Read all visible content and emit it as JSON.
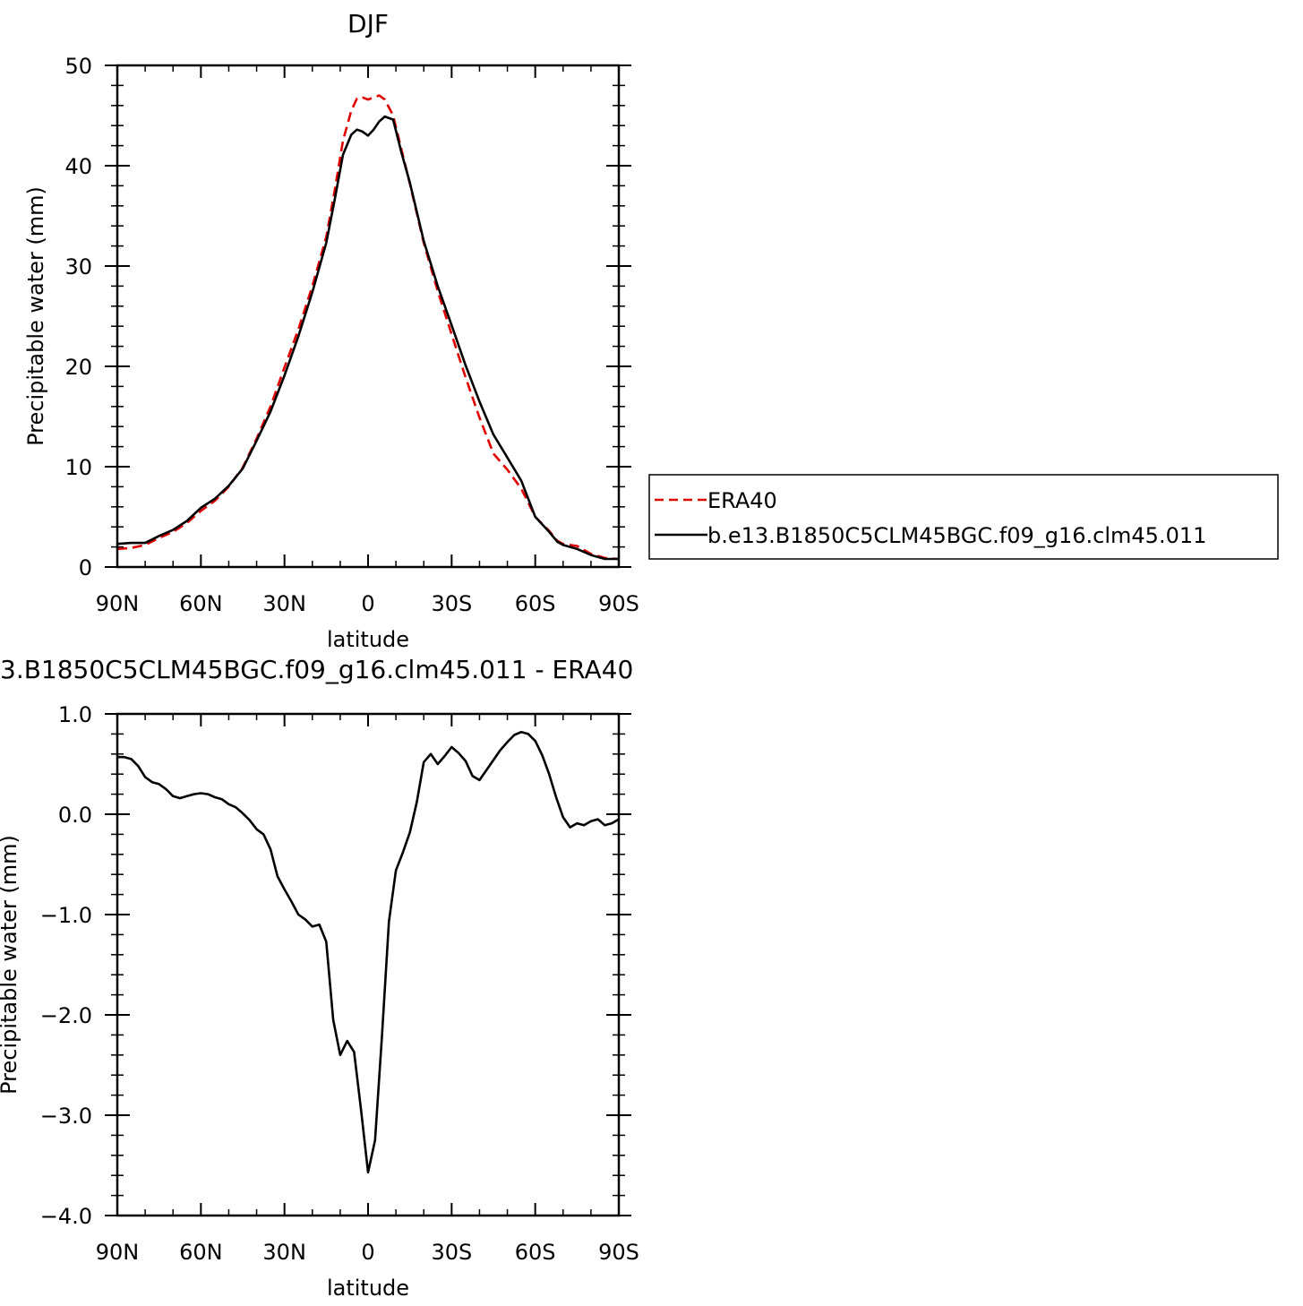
{
  "chart_data": [
    {
      "type": "line",
      "title": "DJF",
      "xlabel": "latitude",
      "ylabel": "Precipitable water (mm)",
      "xlim": [
        90,
        -90
      ],
      "ylim": [
        0,
        50
      ],
      "x_ticks": [
        90,
        60,
        30,
        0,
        -30,
        -60,
        -90
      ],
      "x_tick_labels": [
        "90N",
        "60N",
        "30N",
        "0",
        "30S",
        "60S",
        "90S"
      ],
      "y_ticks": [
        0,
        10,
        20,
        30,
        40,
        50
      ],
      "y_tick_labels": [
        "0",
        "10",
        "20",
        "30",
        "40",
        "50"
      ],
      "legend": "right",
      "series": [
        {
          "name": "ERA40",
          "color": "#e00000",
          "dash": "dashed",
          "x": [
            90,
            85,
            80,
            75,
            70,
            65,
            60,
            55,
            50,
            45,
            40,
            35,
            30,
            25,
            20,
            15,
            12,
            9,
            6,
            4,
            2,
            0,
            -2,
            -4,
            -6,
            -9,
            -12,
            -15,
            -20,
            -25,
            -30,
            -35,
            -40,
            -45,
            -50,
            -55,
            -60,
            -65,
            -68,
            -70,
            -75,
            -80,
            -85,
            -90
          ],
          "values": [
            1.8,
            1.9,
            2.2,
            2.9,
            3.5,
            4.4,
            5.6,
            6.6,
            8.0,
            9.9,
            12.8,
            16.0,
            19.9,
            23.7,
            28.0,
            32.9,
            37.5,
            42.5,
            45.5,
            46.7,
            46.8,
            46.6,
            46.8,
            47.0,
            46.6,
            45.0,
            41.6,
            38.2,
            32.3,
            27.5,
            23.2,
            18.9,
            14.9,
            11.3,
            9.7,
            7.8,
            5.0,
            3.6,
            2.6,
            2.3,
            2.1,
            1.3,
            0.9,
            0.8
          ]
        },
        {
          "name": "b.e13.B1850C5CLM45BGC.f09_g16.clm45.011",
          "color": "#000000",
          "dash": "solid",
          "x": [
            90,
            85,
            80,
            75,
            70,
            65,
            60,
            55,
            50,
            45,
            40,
            35,
            30,
            25,
            20,
            15,
            12,
            9,
            6,
            4,
            2,
            0,
            -2,
            -4,
            -6,
            -9,
            -12,
            -15,
            -20,
            -25,
            -30,
            -35,
            -40,
            -45,
            -50,
            -55,
            -60,
            -65,
            -68,
            -70,
            -75,
            -80,
            -85,
            -90
          ],
          "values": [
            2.3,
            2.4,
            2.4,
            3.1,
            3.7,
            4.6,
            5.9,
            6.8,
            8.1,
            9.8,
            12.6,
            15.5,
            19.1,
            23.0,
            27.4,
            32.3,
            36.6,
            41.1,
            43.1,
            43.6,
            43.4,
            43.0,
            43.6,
            44.4,
            44.9,
            44.6,
            41.3,
            38.3,
            32.5,
            28.0,
            24.1,
            20.1,
            16.5,
            13.2,
            10.9,
            8.6,
            5.0,
            3.5,
            2.5,
            2.2,
            1.8,
            1.2,
            0.8,
            0.8
          ]
        }
      ]
    },
    {
      "type": "line",
      "title": "3.B1850C5CLM45BGC.f09_g16.clm45.011  -  ERA40",
      "xlabel": "latitude",
      "ylabel": "Precipitable water (mm)",
      "xlim": [
        90,
        -90
      ],
      "ylim": [
        -4.0,
        1.0
      ],
      "x_ticks": [
        90,
        60,
        30,
        0,
        -30,
        -60,
        -90
      ],
      "x_tick_labels": [
        "90N",
        "60N",
        "30N",
        "0",
        "30S",
        "60S",
        "90S"
      ],
      "y_ticks": [
        1.0,
        0.0,
        -1.0,
        -2.0,
        -3.0,
        -4.0
      ],
      "y_tick_labels": [
        "1.0",
        "0.0",
        "−1.0",
        "−2.0",
        "−3.0",
        "−4.0"
      ],
      "series": [
        {
          "color": "#000000",
          "dash": "solid",
          "x": [
            90,
            87.5,
            85,
            82.5,
            80,
            77.5,
            75,
            72.5,
            70,
            67.5,
            65,
            62.5,
            60,
            57.5,
            55,
            52.5,
            50,
            47.5,
            45,
            42.5,
            40,
            37.5,
            35,
            32.5,
            30,
            27.5,
            25,
            22.5,
            20,
            17.5,
            15,
            12.5,
            10,
            7.5,
            5,
            2.5,
            0,
            -2.5,
            -5,
            -7.5,
            -10,
            -12.5,
            -15,
            -17.5,
            -20,
            -22.5,
            -25,
            -27.5,
            -30,
            -32.5,
            -35,
            -37.5,
            -40,
            -42.5,
            -45,
            -47.5,
            -50,
            -52.5,
            -55,
            -57.5,
            -60,
            -62.5,
            -65,
            -67.5,
            -70,
            -72.5,
            -75,
            -77.5,
            -80,
            -82.5,
            -85,
            -87.5,
            -90
          ],
          "values": [
            0.57,
            0.57,
            0.55,
            0.48,
            0.37,
            0.32,
            0.3,
            0.25,
            0.18,
            0.16,
            0.18,
            0.2,
            0.21,
            0.2,
            0.17,
            0.15,
            0.1,
            0.07,
            0.01,
            -0.06,
            -0.15,
            -0.2,
            -0.35,
            -0.62,
            -0.75,
            -0.87,
            -1.0,
            -1.05,
            -1.12,
            -1.1,
            -1.27,
            -2.05,
            -2.4,
            -2.26,
            -2.37,
            -2.95,
            -3.57,
            -3.25,
            -2.2,
            -1.07,
            -0.56,
            -0.38,
            -0.18,
            0.12,
            0.52,
            0.6,
            0.5,
            0.58,
            0.67,
            0.61,
            0.53,
            0.38,
            0.34,
            0.44,
            0.54,
            0.64,
            0.72,
            0.79,
            0.82,
            0.8,
            0.73,
            0.59,
            0.4,
            0.17,
            -0.03,
            -0.13,
            -0.09,
            -0.11,
            -0.07,
            -0.05,
            -0.11,
            -0.09,
            -0.05
          ]
        }
      ]
    }
  ]
}
